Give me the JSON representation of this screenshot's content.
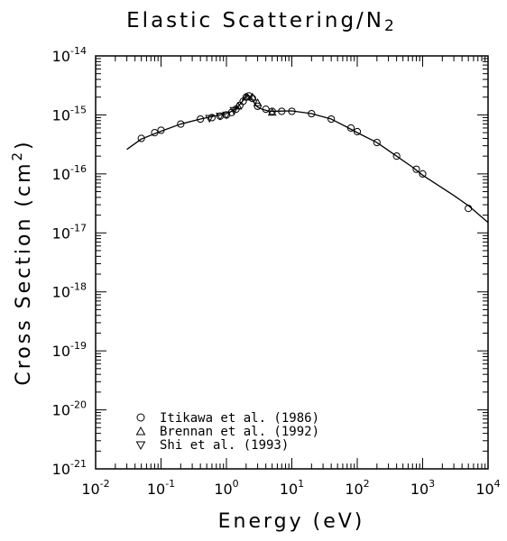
{
  "chart_data": {
    "type": "scatter",
    "title": "Elastic Scattering/N",
    "title_subscript": "2",
    "xlabel": "Energy (eV)",
    "ylabel": "Cross Section (cm",
    "ylabel_superscript": "2",
    "ylabel_suffix": ")",
    "x_scale": "log",
    "y_scale": "log",
    "xlim": [
      0.01,
      10000
    ],
    "ylim": [
      1e-21,
      1e-14
    ],
    "grid": false,
    "legend_position": "bottom-left",
    "x_ticks": [
      {
        "base": "10",
        "exp": "-2"
      },
      {
        "base": "10",
        "exp": "-1"
      },
      {
        "base": "10",
        "exp": "0"
      },
      {
        "base": "10",
        "exp": "1"
      },
      {
        "base": "10",
        "exp": "2"
      },
      {
        "base": "10",
        "exp": "3"
      },
      {
        "base": "10",
        "exp": "4"
      }
    ],
    "y_ticks": [
      {
        "base": "10",
        "exp": "-21"
      },
      {
        "base": "10",
        "exp": "-20"
      },
      {
        "base": "10",
        "exp": "-19"
      },
      {
        "base": "10",
        "exp": "-18"
      },
      {
        "base": "10",
        "exp": "-17"
      },
      {
        "base": "10",
        "exp": "-16"
      },
      {
        "base": "10",
        "exp": "-15"
      },
      {
        "base": "10",
        "exp": "-14"
      }
    ],
    "fit_curve": {
      "x": [
        0.03,
        0.05,
        0.1,
        0.2,
        0.4,
        0.7,
        1.0,
        1.3,
        1.6,
        1.9,
        2.1,
        2.3,
        2.5,
        2.7,
        3.0,
        3.5,
        4.2,
        5.0,
        7,
        10,
        20,
        40,
        70,
        100,
        200,
        400,
        700,
        1000,
        3000,
        5000,
        10000
      ],
      "y": [
        2.6e-16,
        3.9e-16,
        5.3e-16,
        7e-16,
        8.5e-16,
        9.7e-16,
        1.05e-15,
        1.2e-15,
        1.5e-15,
        1.9e-15,
        2.15e-15,
        2.05e-15,
        1.8e-15,
        1.55e-15,
        1.35e-15,
        1.25e-15,
        1.18e-15,
        1.15e-15,
        1.16e-15,
        1.17e-15,
        1.05e-15,
        8.5e-16,
        6.2e-16,
        5e-16,
        3.4e-16,
        2e-16,
        1.3e-16,
        9.5e-17,
        4.3e-17,
        2.9e-17,
        1.5e-17
      ]
    },
    "series": [
      {
        "name": "Itikawa et al. (1986)",
        "marker": "circle",
        "x": [
          0.05,
          0.08,
          0.1,
          0.2,
          0.4,
          0.6,
          0.8,
          1.0,
          1.2,
          1.4,
          1.6,
          1.8,
          2.0,
          2.2,
          2.5,
          3.0,
          4.0,
          5.0,
          7.0,
          10,
          20,
          40,
          80,
          100,
          200,
          400,
          800,
          1000,
          5000
        ],
        "y": [
          4e-16,
          5e-16,
          5.5e-16,
          7e-16,
          8.5e-16,
          9e-16,
          9.5e-16,
          1e-15,
          1.1e-15,
          1.25e-15,
          1.45e-15,
          1.7e-15,
          2e-15,
          2.1e-15,
          1.9e-15,
          1.4e-15,
          1.25e-15,
          1.15e-15,
          1.15e-15,
          1.15e-15,
          1.05e-15,
          8.5e-16,
          6e-16,
          5.2e-16,
          3.4e-16,
          2e-16,
          1.2e-16,
          1e-16,
          2.6e-17
        ]
      },
      {
        "name": "Brennan et al. (1992)",
        "marker": "triangle-up",
        "x": [
          1.5,
          2.0,
          2.5,
          3.0,
          5.0
        ],
        "y": [
          1.4e-15,
          2e-15,
          2e-15,
          1.6e-15,
          1.1e-15
        ]
      },
      {
        "name": "Shi et al. (1993)",
        "marker": "triangle-down",
        "x": [
          0.55,
          0.8,
          1.0,
          1.3
        ],
        "y": [
          8.8e-16,
          9.6e-16,
          1e-15,
          1.2e-15
        ]
      }
    ]
  }
}
